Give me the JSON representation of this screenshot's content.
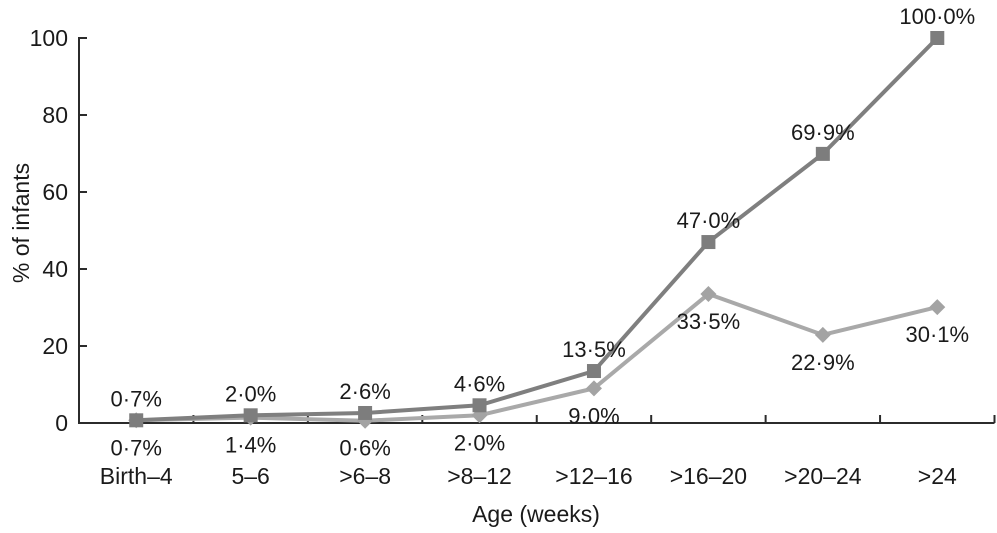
{
  "chart_data": {
    "type": "line",
    "title": "",
    "xlabel": "Age (weeks)",
    "ylabel": "% of infants",
    "ylim": [
      0,
      100
    ],
    "yticks": [
      0,
      20,
      40,
      60,
      80,
      100
    ],
    "ytick_labels": [
      "0",
      "20",
      "40",
      "60",
      "80",
      "100"
    ],
    "categories": [
      "Birth–4",
      "5–6",
      ">6–8",
      ">8–12",
      ">12–16",
      ">16–20",
      ">20–24",
      ">24"
    ],
    "grid": false,
    "legend_position": "none",
    "axis_color": "#2b2b2b",
    "text_color": "#1a1a1a",
    "series": [
      {
        "name": "cumulative-introduction-squares",
        "marker": "square",
        "line_color": "#7f7f7f",
        "marker_color": "#7d7d7d",
        "values": [
          0.7,
          2.0,
          2.6,
          4.6,
          13.5,
          47.0,
          69.9,
          100.0
        ],
        "labels": [
          "0·7%",
          "2·0%",
          "2·6%",
          "4·6%",
          "13·5%",
          "47·0%",
          "69·9%",
          "100·0%"
        ],
        "label_position": "above"
      },
      {
        "name": "interval-introduction-diamonds",
        "marker": "diamond",
        "line_color": "#a9a9a9",
        "marker_color": "#a3a3a3",
        "values": [
          0.7,
          1.4,
          0.6,
          2.0,
          9.0,
          33.5,
          22.9,
          30.1
        ],
        "labels": [
          "0·7%",
          "1·4%",
          "0·6%",
          "2·0%",
          "9·0%",
          "33·5%",
          "22·9%",
          "30·1%"
        ],
        "label_position": "below"
      }
    ]
  }
}
